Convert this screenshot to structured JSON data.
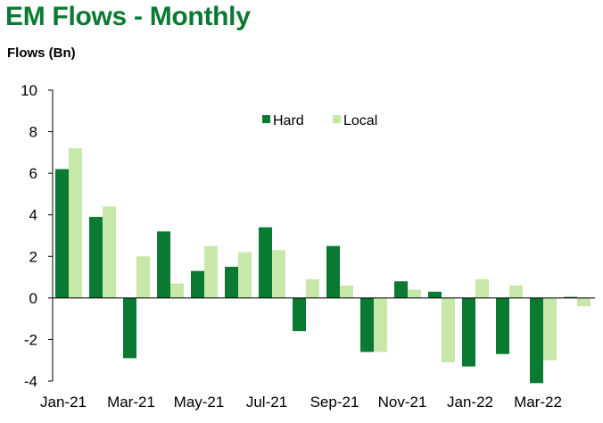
{
  "header": {
    "title": "EM Flows - Monthly",
    "units_label": "Flows (Bn)"
  },
  "colors": {
    "title": "#0a7a33",
    "hard": "#0a7a33",
    "local": "#c7e8a8"
  },
  "chart_data": {
    "type": "bar",
    "title": "EM Flows - Monthly",
    "xlabel": "",
    "ylabel": "Flows (Bn)",
    "ylim": [
      -4,
      10
    ],
    "yticks": [
      -4,
      -2,
      0,
      2,
      4,
      6,
      8,
      10
    ],
    "grid": false,
    "legend_position": "top-center",
    "categories": [
      "Jan-21",
      "Feb-21",
      "Mar-21",
      "Apr-21",
      "May-21",
      "Jun-21",
      "Jul-21",
      "Aug-21",
      "Sep-21",
      "Oct-21",
      "Nov-21",
      "Dec-21",
      "Jan-22",
      "Feb-22",
      "Mar-22",
      "Apr-22"
    ],
    "tick_labels": [
      "Jan-21",
      "Mar-21",
      "May-21",
      "Jul-21",
      "Sep-21",
      "Nov-21",
      "Jan-22",
      "Mar-22"
    ],
    "series": [
      {
        "name": "Hard",
        "values": [
          6.2,
          3.9,
          -2.9,
          3.2,
          1.3,
          1.5,
          3.4,
          -1.6,
          2.5,
          -2.6,
          0.8,
          0.3,
          -3.3,
          -2.7,
          -4.1,
          0.05
        ]
      },
      {
        "name": "Local",
        "values": [
          7.2,
          4.4,
          2.0,
          0.7,
          2.5,
          2.2,
          2.3,
          0.9,
          0.6,
          -2.6,
          0.4,
          -3.1,
          0.9,
          0.6,
          -3.0,
          -0.4
        ]
      }
    ]
  }
}
